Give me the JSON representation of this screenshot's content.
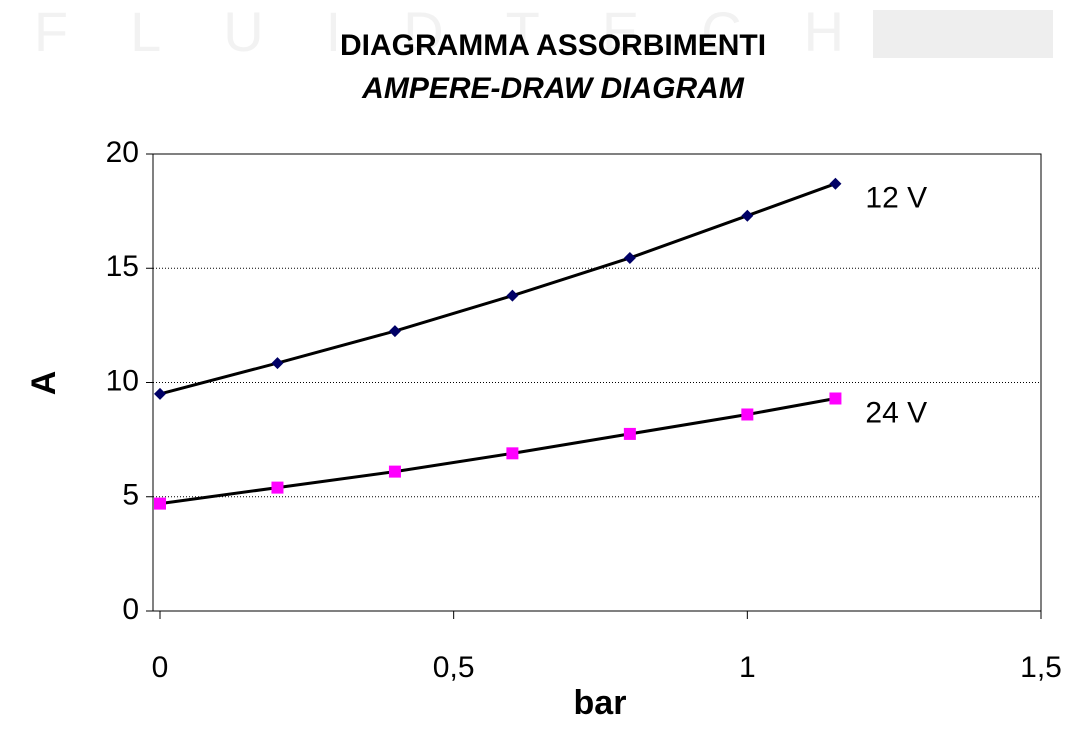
{
  "chart_data": {
    "type": "line",
    "watermark": "FLUIDTECH",
    "title": "DIAGRAMMA ASSORBIMENTI",
    "subtitle": "AMPERE-DRAW DIAGRAM",
    "x_label": "bar",
    "y_label": "A",
    "x": [
      0,
      0.2,
      0.4,
      0.6,
      0.8,
      1,
      1.15
    ],
    "series": [
      {
        "name": "12 V",
        "color": "#000066",
        "marker": "diamond",
        "values": [
          9.5,
          10.85,
          12.25,
          13.8,
          15.45,
          17.3,
          18.7
        ]
      },
      {
        "name": "24 V",
        "color": "#ff00ff",
        "marker": "square",
        "values": [
          4.7,
          5.4,
          6.1,
          6.9,
          7.75,
          8.6,
          9.3
        ]
      }
    ],
    "line_color": "#000000",
    "xlim": [
      0,
      1.5
    ],
    "xticks": [
      0,
      {
        "value": 0.5,
        "label": "0,5"
      },
      1,
      {
        "value": 1.5,
        "label": "1,5"
      }
    ],
    "ylim": [
      0,
      20
    ],
    "yticks": [
      0,
      5,
      10,
      15,
      20
    ],
    "grid": true
  }
}
